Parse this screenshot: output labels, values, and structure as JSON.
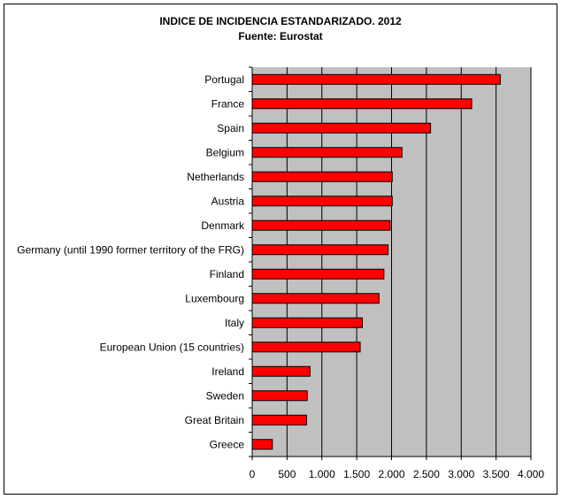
{
  "chart_data": {
    "type": "bar",
    "orientation": "horizontal",
    "title": "INDICE DE INCIDENCIA ESTANDARIZADO. 2012",
    "subtitle": "Fuente: Eurostat",
    "categories": [
      "Portugal",
      "France",
      "Spain",
      "Belgium",
      "Netherlands",
      "Austria",
      "Denmark",
      "Germany (until 1990 former territory of the FRG)",
      "Finland",
      "Luxembourg",
      "Italy",
      "European Union (15 countries)",
      "Ireland",
      "Sweden",
      "Great Britain",
      "Greece"
    ],
    "values": [
      3560,
      3150,
      2560,
      2150,
      2010,
      2010,
      1980,
      1950,
      1890,
      1820,
      1580,
      1550,
      830,
      790,
      780,
      290
    ],
    "xlim": [
      0,
      4000
    ],
    "xticks": [
      0,
      500,
      1000,
      1500,
      2000,
      2500,
      3000,
      3500,
      4000
    ],
    "xtick_labels": [
      "0",
      "500",
      "1.000",
      "1.500",
      "2.000",
      "2.500",
      "3.000",
      "3.500",
      "4.000"
    ],
    "grid": "vertical",
    "legend": "none",
    "colors": {
      "bar": "#ff0000",
      "bar_border": "#000000",
      "plot_background": "#c0c0c0",
      "gridline": "#000000"
    }
  }
}
